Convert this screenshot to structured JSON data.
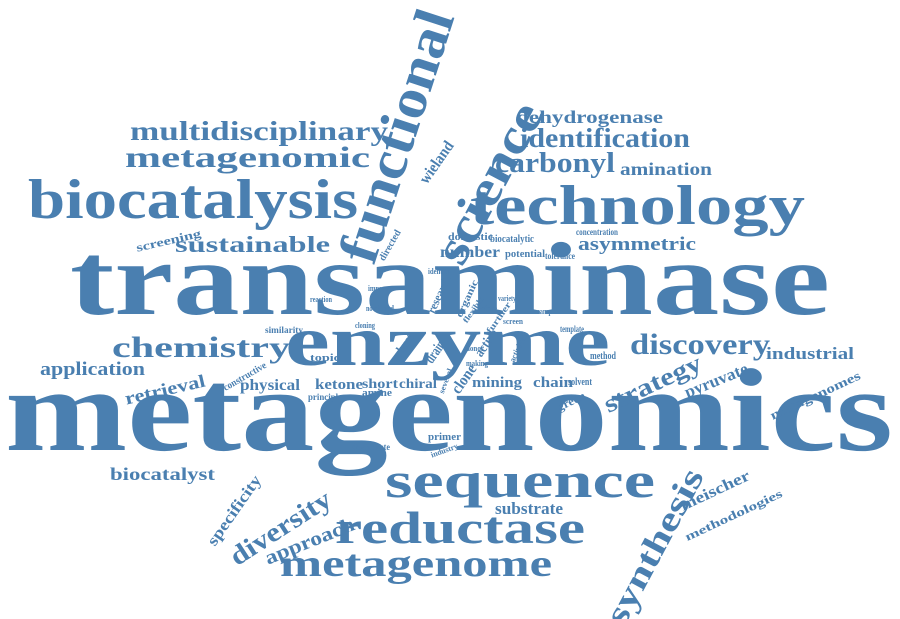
{
  "colors": {
    "word": "#4a7fb0",
    "background": "#ffffff"
  },
  "words": [
    {
      "text": "metagenomics"
    },
    {
      "text": "transaminase"
    },
    {
      "text": "enzyme"
    },
    {
      "text": "technology"
    },
    {
      "text": "biocatalysis"
    },
    {
      "text": "functional"
    },
    {
      "text": "science"
    },
    {
      "text": "sequence"
    },
    {
      "text": "reductase"
    },
    {
      "text": "metagenome"
    },
    {
      "text": "metagenomic"
    },
    {
      "text": "multidisciplinary"
    },
    {
      "text": "identification"
    },
    {
      "text": "carbonyl"
    },
    {
      "text": "chemistry"
    },
    {
      "text": "discovery"
    },
    {
      "text": "synthesis"
    },
    {
      "text": "diversity"
    },
    {
      "text": "sustainable"
    },
    {
      "text": "dehydrogenase"
    },
    {
      "text": "amination"
    },
    {
      "text": "asymmetric"
    },
    {
      "text": "strategy"
    },
    {
      "text": "application"
    },
    {
      "text": "biocatalyst"
    },
    {
      "text": "retrieval"
    },
    {
      "text": "approach"
    },
    {
      "text": "substrate"
    },
    {
      "text": "specificity"
    },
    {
      "text": "pyruvate"
    },
    {
      "text": "industrial"
    },
    {
      "text": "metagenomes"
    },
    {
      "text": "methodologies"
    },
    {
      "text": "meischer"
    },
    {
      "text": "physical"
    },
    {
      "text": "ketone"
    },
    {
      "text": "short"
    },
    {
      "text": "chiral"
    },
    {
      "text": "mining"
    },
    {
      "text": "chain"
    },
    {
      "text": "number"
    },
    {
      "text": "screening"
    },
    {
      "text": "wieland"
    },
    {
      "text": "primer"
    },
    {
      "text": "amine"
    },
    {
      "text": "topic"
    },
    {
      "text": "directed"
    },
    {
      "text": "domestic"
    },
    {
      "text": "biocatalytic"
    },
    {
      "text": "potential"
    },
    {
      "text": "concentration"
    },
    {
      "text": "tolerance"
    },
    {
      "text": "research"
    },
    {
      "text": "green"
    },
    {
      "text": "solvent"
    },
    {
      "text": "method"
    },
    {
      "text": "template"
    },
    {
      "text": "sample"
    },
    {
      "text": "clone"
    },
    {
      "text": "drain"
    },
    {
      "text": "active"
    },
    {
      "text": "robust"
    },
    {
      "text": "constructive"
    },
    {
      "text": "similarity"
    },
    {
      "text": "principle"
    },
    {
      "text": "degenerate"
    },
    {
      "text": "industry"
    },
    {
      "text": "improve"
    },
    {
      "text": "reaction"
    },
    {
      "text": "cloning"
    },
    {
      "text": "several"
    },
    {
      "text": "activities"
    },
    {
      "text": "screen"
    },
    {
      "text": "variety"
    },
    {
      "text": "identity"
    },
    {
      "text": "organic"
    },
    {
      "text": "novel"
    },
    {
      "text": "flexible"
    },
    {
      "text": "further"
    },
    {
      "text": "before"
    },
    {
      "text": "donor"
    },
    {
      "text": "used"
    },
    {
      "text": "making"
    }
  ]
}
